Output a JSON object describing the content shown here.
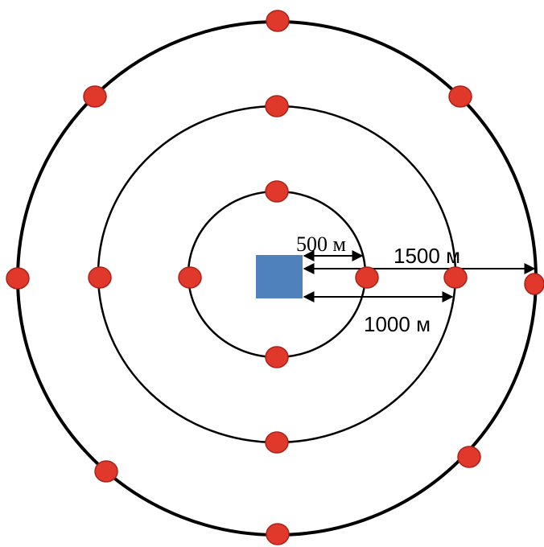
{
  "colors": {
    "source": "#4f81bd",
    "point": "#e0382a",
    "ring": "#000000"
  },
  "labels": {
    "r500": "500 м",
    "r1000": "1000 м",
    "r1500": "1500 м"
  }
}
